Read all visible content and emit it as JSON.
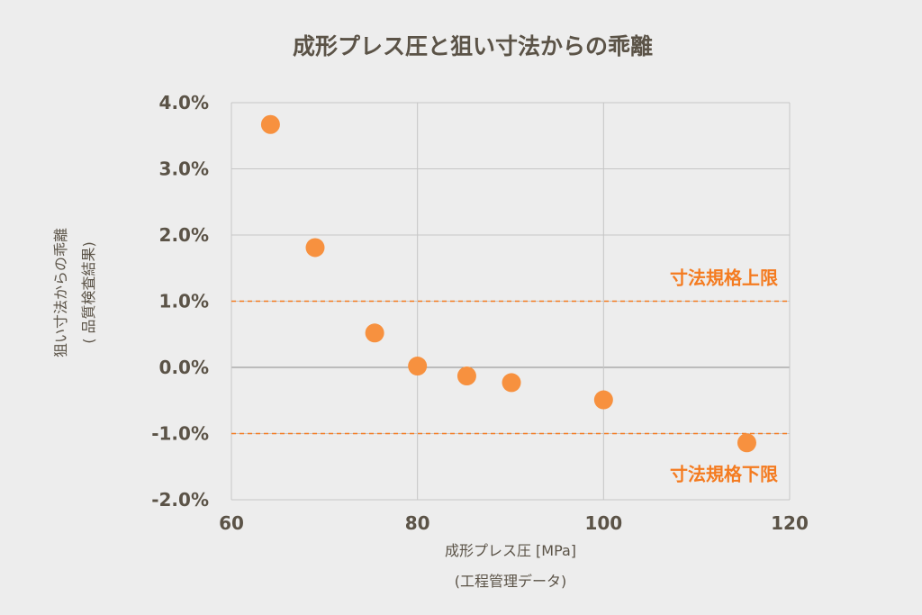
{
  "chart_data": {
    "type": "scatter",
    "title": "成形プレス圧と狙い寸法からの乖離",
    "xlabel": [
      "成形プレス圧 [MPa]",
      "(工程管理データ)"
    ],
    "ylabel": [
      "狙い寸法からの乖離",
      "( 品質検査結果)"
    ],
    "xlim": [
      60,
      120
    ],
    "ylim": [
      -2.0,
      4.0
    ],
    "xticks": [
      60,
      80,
      100,
      120
    ],
    "xtick_labels": [
      "60",
      "80",
      "100",
      "120"
    ],
    "yticks": [
      -2,
      -1,
      0,
      1,
      2,
      3,
      4
    ],
    "ytick_labels": [
      "-2.0%",
      "-1.0%",
      "0.0%",
      "1.0%",
      "2.0%",
      "3.0%",
      "4.0%"
    ],
    "grid": true,
    "points": [
      {
        "x": 64.2,
        "y": 3.67
      },
      {
        "x": 69.0,
        "y": 1.81
      },
      {
        "x": 75.4,
        "y": 0.52
      },
      {
        "x": 80.0,
        "y": 0.02
      },
      {
        "x": 85.3,
        "y": -0.13
      },
      {
        "x": 90.1,
        "y": -0.23
      },
      {
        "x": 100.0,
        "y": -0.49
      },
      {
        "x": 115.4,
        "y": -1.14
      }
    ],
    "reference_lines": [
      {
        "y": 1.0,
        "label": "寸法規格上限"
      },
      {
        "y": -1.0,
        "label": "寸法規格下限"
      }
    ],
    "colors": {
      "points": "#f7913f",
      "reference": "#f47b20",
      "grid": "#c6c6c6",
      "text": "#5b5347"
    }
  }
}
